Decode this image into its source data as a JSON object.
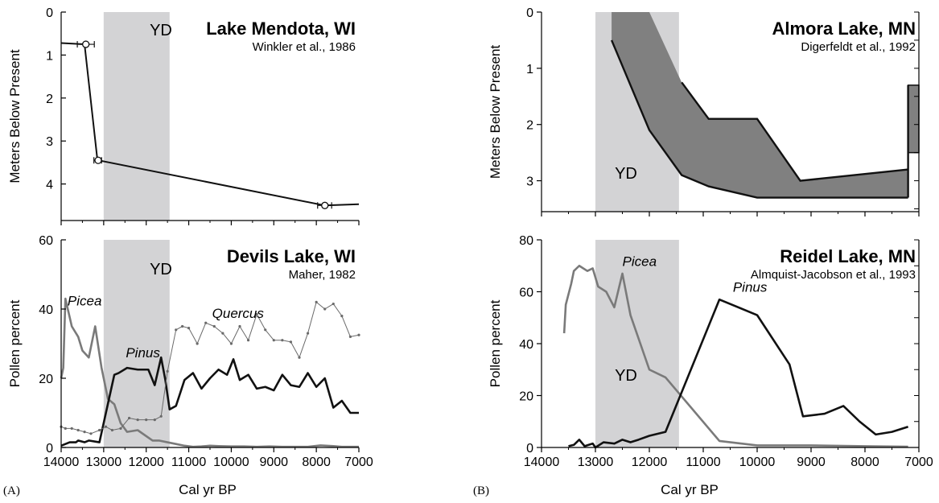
{
  "figure": {
    "panel_labels": [
      "(A)",
      "(B)"
    ],
    "x_label": "Cal yr BP"
  },
  "chart_data": [
    {
      "type": "line",
      "title": "Lake Mendota, WI",
      "subtitle": "Winkler et al., 1986",
      "xlabel": "",
      "ylabel": "Meters Below Present",
      "xlim": [
        14000,
        7000
      ],
      "ylim": [
        0,
        4.85
      ],
      "y_inverted": true,
      "yticks": [
        0,
        1,
        2,
        3,
        4
      ],
      "band": {
        "label": "YD",
        "x0": 13000,
        "x1": 11450,
        "color": "#d3d3d5"
      },
      "series": [
        {
          "style": "main",
          "x": [
            14000,
            13450,
            13150,
            13120,
            7800,
            7000
          ],
          "y": [
            0.72,
            0.75,
            3.42,
            3.45,
            4.5,
            4.47
          ]
        }
      ],
      "points": [
        {
          "x": 13420,
          "y": 0.75,
          "err": [
            13620,
            13220
          ]
        },
        {
          "x": 13130,
          "y": 3.45,
          "err": [
            13230,
            13050
          ]
        },
        {
          "x": 7800,
          "y": 4.5,
          "err": [
            7970,
            7640
          ]
        }
      ]
    },
    {
      "type": "line",
      "title": "Devils Lake, WI",
      "subtitle": "Maher, 1982",
      "xlabel": "Cal yr BP",
      "ylabel": "Pollen percent",
      "xlim": [
        14000,
        7000
      ],
      "ylim": [
        0,
        60
      ],
      "xticks": [
        14000,
        13000,
        12000,
        11000,
        10000,
        9000,
        8000,
        7000
      ],
      "yticks": [
        0,
        20,
        40,
        60
      ],
      "band": {
        "label": "YD",
        "x0": 13000,
        "x1": 11450,
        "color": "#d3d3d5"
      },
      "series": [
        {
          "name": "Picea",
          "style": "gray",
          "x": [
            14000,
            13950,
            13900,
            13750,
            13600,
            13500,
            13350,
            13200,
            13050,
            12900,
            12750,
            12600,
            12450,
            12200,
            11850,
            11700,
            11500,
            11300,
            11100,
            10900,
            10700,
            10500,
            10300,
            10000,
            9700,
            9400,
            9100,
            8800,
            8500,
            8200,
            7900,
            7600,
            7400,
            7200,
            7000
          ],
          "y": [
            20,
            23,
            43,
            35,
            32,
            28,
            26,
            35,
            23,
            14,
            12.5,
            7,
            4.5,
            5,
            2,
            2,
            1.5,
            1,
            0.5,
            0.2,
            0.3,
            0.5,
            0.4,
            0.3,
            0.3,
            0.2,
            0.3,
            0.2,
            0.2,
            0.2,
            0.6,
            0.4,
            0.2,
            0.2,
            0.2
          ]
        },
        {
          "name": "Pinus",
          "style": "black",
          "x": [
            14000,
            13900,
            13800,
            13650,
            13600,
            13450,
            13350,
            13100,
            12750,
            12650,
            12450,
            12200,
            11950,
            11800,
            11650,
            11550,
            11450,
            11300,
            11100,
            10900,
            10700,
            10500,
            10300,
            10100,
            9950,
            9800,
            9600,
            9400,
            9200,
            9000,
            8800,
            8600,
            8400,
            8200,
            8000,
            7800,
            7600,
            7400,
            7200,
            7000
          ],
          "y": [
            0.5,
            1,
            1.5,
            1.5,
            2,
            1.5,
            2,
            1.5,
            21,
            21.5,
            23,
            22.5,
            22.5,
            18,
            26,
            19.5,
            11,
            12,
            19.5,
            21.5,
            17,
            20,
            22.5,
            21,
            25.5,
            19.5,
            21,
            17,
            17.5,
            16.5,
            21,
            18,
            17.5,
            21.5,
            17.5,
            20,
            11.5,
            13.5,
            10,
            10
          ]
        },
        {
          "name": "Quercus",
          "style": "thin",
          "x": [
            14000,
            13900,
            13750,
            13600,
            13450,
            13300,
            13100,
            12950,
            12800,
            12600,
            12400,
            12200,
            12000,
            11800,
            11650,
            11500,
            11300,
            11150,
            11000,
            10800,
            10600,
            10400,
            10200,
            10000,
            9800,
            9600,
            9400,
            9200,
            9000,
            8800,
            8600,
            8400,
            8200,
            8000,
            7800,
            7600,
            7400,
            7200,
            7000
          ],
          "y": [
            6,
            5.5,
            5.5,
            5,
            4.5,
            4,
            5,
            6,
            5,
            5.5,
            8.5,
            8,
            8,
            8,
            9,
            22,
            34,
            35,
            34.5,
            30,
            36,
            35,
            33,
            30,
            35,
            31,
            38.5,
            34,
            31,
            31,
            30.5,
            26,
            33,
            42,
            40,
            41.5,
            38,
            32,
            32.5
          ]
        }
      ],
      "series_labels": [
        {
          "text": "Picea",
          "x": 13850,
          "y": 41
        },
        {
          "text": "Pinus",
          "x": 12480,
          "y": 26
        },
        {
          "text": "Quercus",
          "x": 10450,
          "y": 37.5
        }
      ]
    },
    {
      "type": "line",
      "title": "Almora Lake, MN",
      "subtitle": "Digerfeldt et al., 1992",
      "xlabel": "",
      "ylabel": "Meters Below Present",
      "xlim": [
        14000,
        7000
      ],
      "ylim": [
        0,
        3.55
      ],
      "y_inverted": true,
      "yticks": [
        0,
        1,
        2,
        3
      ],
      "band": {
        "label": "YD",
        "x0": 13000,
        "x1": 11450,
        "color": "#d3d3d5"
      },
      "envelope": {
        "color": "#808080",
        "upper": {
          "x": [
            12700,
            12000,
            11400,
            10900,
            10000,
            9200,
            7200
          ],
          "y": [
            0.0,
            0.0,
            1.25,
            1.9,
            1.9,
            3.0,
            2.8
          ]
        },
        "lower": {
          "x": [
            12700,
            12000,
            11400,
            10900,
            10000,
            9200,
            7200
          ],
          "y": [
            0.5,
            2.1,
            2.9,
            3.1,
            3.3,
            3.3,
            3.3
          ]
        }
      },
      "side_block": {
        "x0": 7200,
        "x1": 7000,
        "y_top": 1.3,
        "y_bottom": 2.5
      }
    },
    {
      "type": "line",
      "title": "Reidel Lake, MN",
      "subtitle": "Almquist-Jacobson et al., 1993",
      "xlabel": "Cal yr BP",
      "ylabel": "Pollen percent",
      "xlim": [
        14000,
        7000
      ],
      "ylim": [
        0,
        80
      ],
      "xticks": [
        14000,
        13000,
        12000,
        11000,
        10000,
        9000,
        8000,
        7000
      ],
      "yticks": [
        0,
        20,
        40,
        60,
        80
      ],
      "band": {
        "label": "YD",
        "x0": 13000,
        "x1": 11450,
        "color": "#d3d3d5"
      },
      "series": [
        {
          "name": "Picea",
          "style": "gray",
          "x": [
            13580,
            13550,
            13450,
            13400,
            13300,
            13150,
            13050,
            12950,
            12800,
            12650,
            12500,
            12350,
            12000,
            11700,
            10700,
            10000,
            9000,
            8000,
            7200
          ],
          "y": [
            44,
            55,
            63,
            68,
            70,
            68,
            69,
            62,
            60,
            54,
            67,
            51,
            30,
            27,
            2.5,
            0.8,
            0.8,
            0.5,
            0.3
          ]
        },
        {
          "name": "Pinus",
          "style": "black",
          "x": [
            13500,
            13400,
            13300,
            13200,
            13050,
            13000,
            12850,
            12650,
            12500,
            12350,
            12200,
            12000,
            11700,
            10700,
            10000,
            9400,
            9150,
            8750,
            8400,
            8100,
            7800,
            7500,
            7200
          ],
          "y": [
            0.5,
            1,
            3,
            0.5,
            1.5,
            0,
            2,
            1.5,
            3,
            2,
            3,
            4.5,
            6,
            57,
            51,
            32,
            12,
            13,
            16,
            10,
            5,
            6,
            8
          ]
        }
      ],
      "series_labels": [
        {
          "text": "Picea",
          "x": 12500,
          "y": 70
        },
        {
          "text": "Pinus",
          "x": 10450,
          "y": 60
        }
      ]
    }
  ]
}
